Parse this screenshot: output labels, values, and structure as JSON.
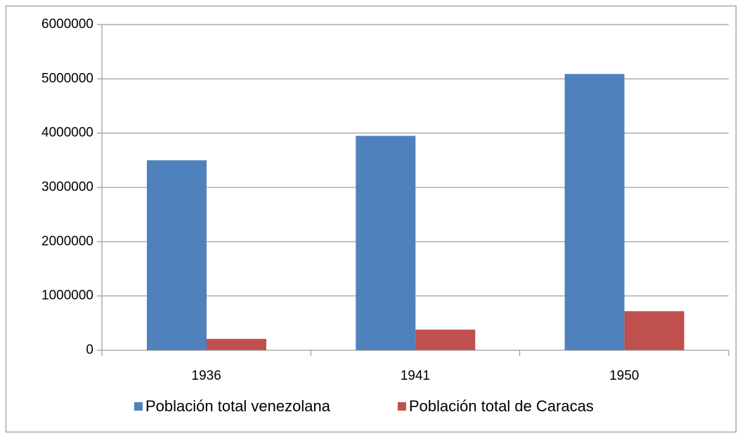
{
  "chart_data": {
    "type": "bar",
    "categories": [
      "1936",
      "1941",
      "1950"
    ],
    "series": [
      {
        "name": "Población total venezolana",
        "color": "#4f81bd",
        "values": [
          3500000,
          3950000,
          5090000
        ]
      },
      {
        "name": "Población total de Caracas",
        "color": "#c0504d",
        "values": [
          210000,
          380000,
          720000
        ]
      }
    ],
    "ylim": [
      0,
      6000000
    ],
    "yticks": [
      0,
      1000000,
      2000000,
      3000000,
      4000000,
      5000000,
      6000000
    ],
    "grid": true,
    "legend": "bottom"
  }
}
